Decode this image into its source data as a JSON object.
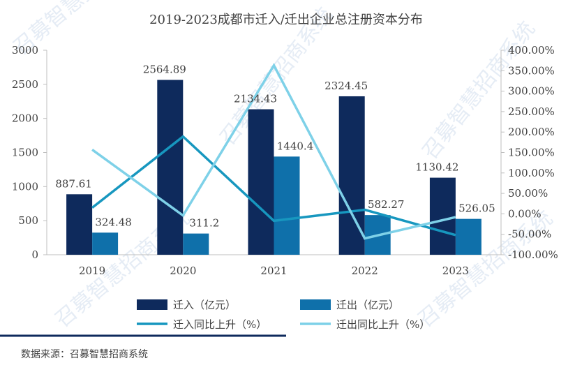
{
  "chart_data": {
    "type": "bar",
    "title": "2019-2023成都市迁入/迁出企业总注册资本分布",
    "categories": [
      "2019",
      "2020",
      "2021",
      "2022",
      "2023"
    ],
    "series": [
      {
        "name": "迁入（亿元）",
        "kind": "bar",
        "axis": "left",
        "color": "#0e2a5c",
        "values": [
          887.61,
          2564.89,
          2134.43,
          2324.45,
          1130.42
        ],
        "labels": [
          "887.61",
          "2564.89",
          "2134.43",
          "2324.45",
          "1130.42"
        ]
      },
      {
        "name": "迁出（亿元）",
        "kind": "bar",
        "axis": "left",
        "color": "#0f70aa",
        "values": [
          324.48,
          311.2,
          1440.4,
          582.27,
          526.05
        ],
        "labels": [
          "324.48",
          "311.2",
          "1440.4",
          "582.27",
          "526.05"
        ]
      },
      {
        "name": "迁入同比上升（%）",
        "kind": "line",
        "axis": "right",
        "color": "#1797bf",
        "values": [
          15,
          189,
          -17,
          10,
          -52
        ]
      },
      {
        "name": "迁出同比上升（%）",
        "kind": "line",
        "axis": "right",
        "color": "#7ed1e8",
        "values": [
          157,
          -4,
          363,
          -60,
          -8
        ]
      }
    ],
    "ylim": [
      0,
      3000
    ],
    "yticks": [
      "0",
      "500",
      "1000",
      "1500",
      "2000",
      "2500",
      "3000"
    ],
    "y2lim": [
      -100,
      400
    ],
    "y2ticks": [
      "-100.00%",
      "-50.00%",
      "0.00%",
      "50.00%",
      "100.00%",
      "150.00%",
      "200.00%",
      "250.00%",
      "300.00%",
      "350.00%",
      "400.00%"
    ],
    "legend_position": "bottom"
  },
  "source_text": "数据来源：召募智慧招商系统",
  "watermark_text": "召募智慧招商系统",
  "colors": {
    "footer_line": "#0e2a5c",
    "axis": "#bfbfbf",
    "watermark": "#dbe5f1"
  }
}
